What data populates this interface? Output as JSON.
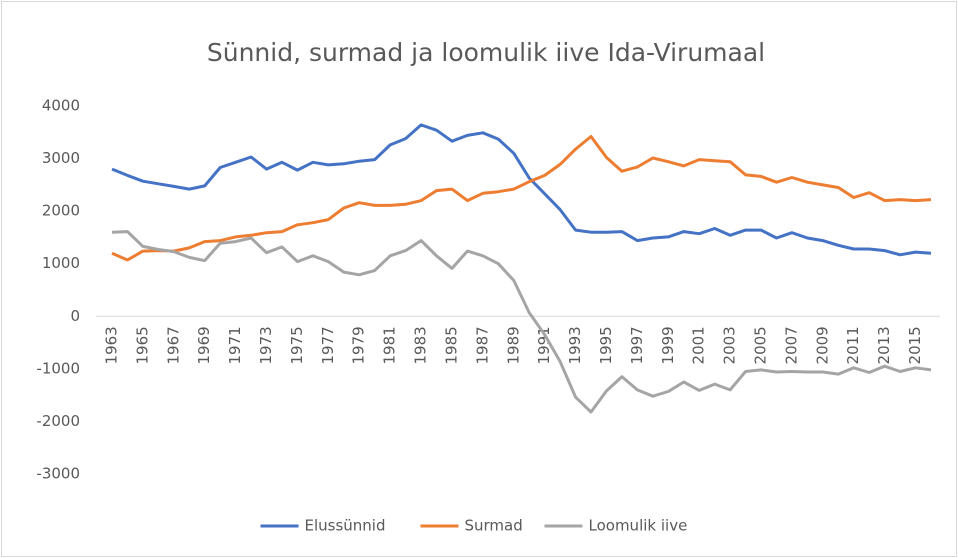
{
  "chart_data": {
    "type": "line",
    "title": "Sünnid, surmad ja loomulik iive Ida-Virumaal",
    "categories": [
      "1963",
      null,
      "1965",
      null,
      "1967",
      null,
      "1969",
      null,
      "1971",
      null,
      "1973",
      null,
      "1975",
      null,
      "1977",
      null,
      "1979",
      null,
      "1981",
      null,
      "1983",
      null,
      "1985",
      null,
      "1987",
      null,
      "1989",
      null,
      "1991",
      null,
      "1993",
      null,
      "1995",
      null,
      "1997",
      null,
      "1999",
      null,
      "2001",
      null,
      "2003",
      null,
      "2005",
      null,
      "2007",
      null,
      "2009",
      null,
      "2011",
      null,
      "2013",
      null,
      "2015",
      null
    ],
    "series": [
      {
        "name": "Elussünnid",
        "color": "#4472c4",
        "values": [
          2800,
          2680,
          2570,
          2520,
          2470,
          2420,
          2480,
          2830,
          2930,
          3030,
          2800,
          2930,
          2780,
          2930,
          2880,
          2900,
          2950,
          2980,
          3260,
          3380,
          3640,
          3540,
          3330,
          3440,
          3490,
          3370,
          3100,
          2630,
          2330,
          2030,
          1640,
          1600,
          1600,
          1610,
          1440,
          1490,
          1510,
          1610,
          1570,
          1670,
          1540,
          1640,
          1640,
          1490,
          1590,
          1490,
          1440,
          1350,
          1280,
          1280,
          1250,
          1170,
          1220,
          1200
        ]
      },
      {
        "name": "Surmad",
        "color": "#ed7d31",
        "values": [
          1200,
          1070,
          1240,
          1250,
          1240,
          1300,
          1420,
          1440,
          1510,
          1540,
          1590,
          1610,
          1740,
          1780,
          1840,
          2060,
          2160,
          2110,
          2110,
          2130,
          2200,
          2390,
          2420,
          2200,
          2340,
          2370,
          2420,
          2560,
          2680,
          2890,
          3180,
          3420,
          3020,
          2760,
          2840,
          3010,
          2940,
          2860,
          2980,
          2960,
          2940,
          2690,
          2660,
          2550,
          2640,
          2550,
          2500,
          2450,
          2260,
          2350,
          2200,
          2220,
          2200,
          2220
        ]
      },
      {
        "name": "Loomulik iive",
        "color": "#a5a5a5",
        "values": [
          1600,
          1610,
          1330,
          1270,
          1230,
          1120,
          1060,
          1390,
          1420,
          1490,
          1210,
          1320,
          1040,
          1150,
          1040,
          840,
          790,
          870,
          1150,
          1250,
          1440,
          1150,
          910,
          1240,
          1150,
          1000,
          680,
          70,
          -350,
          -860,
          -1540,
          -1820,
          -1420,
          -1150,
          -1400,
          -1520,
          -1430,
          -1250,
          -1410,
          -1290,
          -1400,
          -1050,
          -1020,
          -1060,
          -1050,
          -1060,
          -1060,
          -1100,
          -980,
          -1070,
          -950,
          -1050,
          -980,
          -1020
        ]
      }
    ],
    "ylim": [
      -3000,
      4000
    ],
    "yticks": [
      -3000,
      -2000,
      -1000,
      0,
      1000,
      2000,
      3000,
      4000
    ],
    "grid": false,
    "legend": "bottom"
  }
}
